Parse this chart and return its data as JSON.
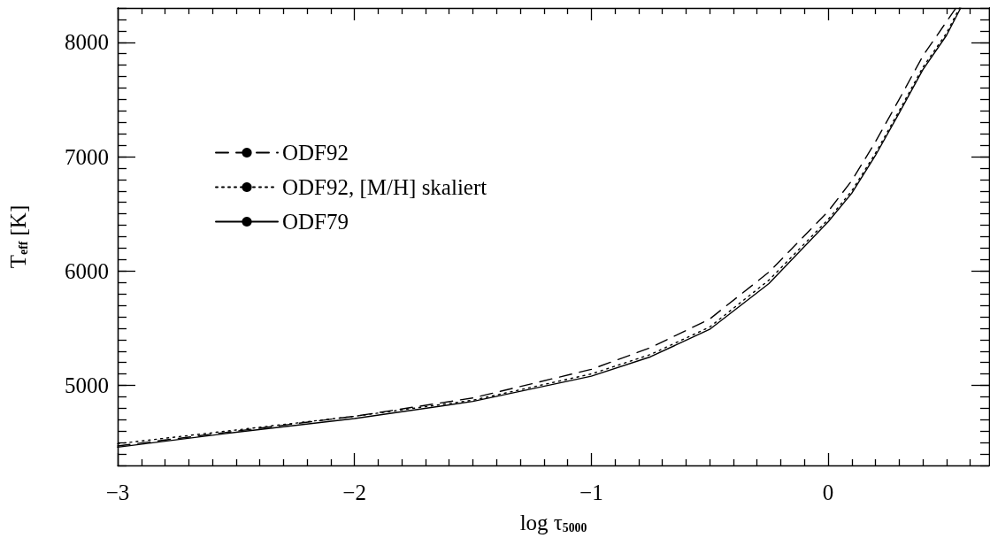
{
  "chart_data": {
    "type": "line",
    "xlabel": "log τ$_{5000}$",
    "ylabel": "T$_{eff}$ [K]",
    "xlim": [
      -3,
      0.68
    ],
    "xticks": [
      -3,
      -2,
      -1,
      0
    ],
    "ylim": [
      4300,
      8300
    ],
    "yticks": [
      5000,
      6000,
      7000,
      8000
    ],
    "grid": false,
    "legend": "top left",
    "marker": "none",
    "series": [
      {
        "name": "ODF92",
        "color": "#000000",
        "line_style": "dashed",
        "x": [
          -3,
          -2.5,
          -2,
          -1.5,
          -1,
          -0.75,
          -0.5,
          -0.25,
          0,
          0.1,
          0.2,
          0.3,
          0.4,
          0.5,
          0.54
        ],
        "values": [
          4470,
          4600,
          4730,
          4890,
          5140,
          5330,
          5580,
          5990,
          6520,
          6790,
          7130,
          7500,
          7880,
          8180,
          8300
        ]
      },
      {
        "name": "ODF92, [M/H] skaliert",
        "color": "#000000",
        "line_style": "dotted",
        "x": [
          -3,
          -2.5,
          -2,
          -1.5,
          -1,
          -0.75,
          -0.5,
          -0.25,
          0,
          0.1,
          0.2,
          0.3,
          0.4,
          0.5,
          0.555
        ],
        "values": [
          4490,
          4610,
          4730,
          4870,
          5100,
          5270,
          5510,
          5920,
          6450,
          6700,
          7030,
          7400,
          7780,
          8080,
          8300
        ]
      },
      {
        "name": "ODF79",
        "color": "#000000",
        "line_style": "solid",
        "x": [
          -3,
          -2.5,
          -2,
          -1.5,
          -1,
          -0.75,
          -0.5,
          -0.25,
          0,
          0.1,
          0.2,
          0.3,
          0.4,
          0.5,
          0.56
        ],
        "values": [
          4460,
          4590,
          4710,
          4860,
          5080,
          5250,
          5490,
          5890,
          6430,
          6680,
          7010,
          7380,
          7760,
          8060,
          8300
        ]
      }
    ]
  }
}
